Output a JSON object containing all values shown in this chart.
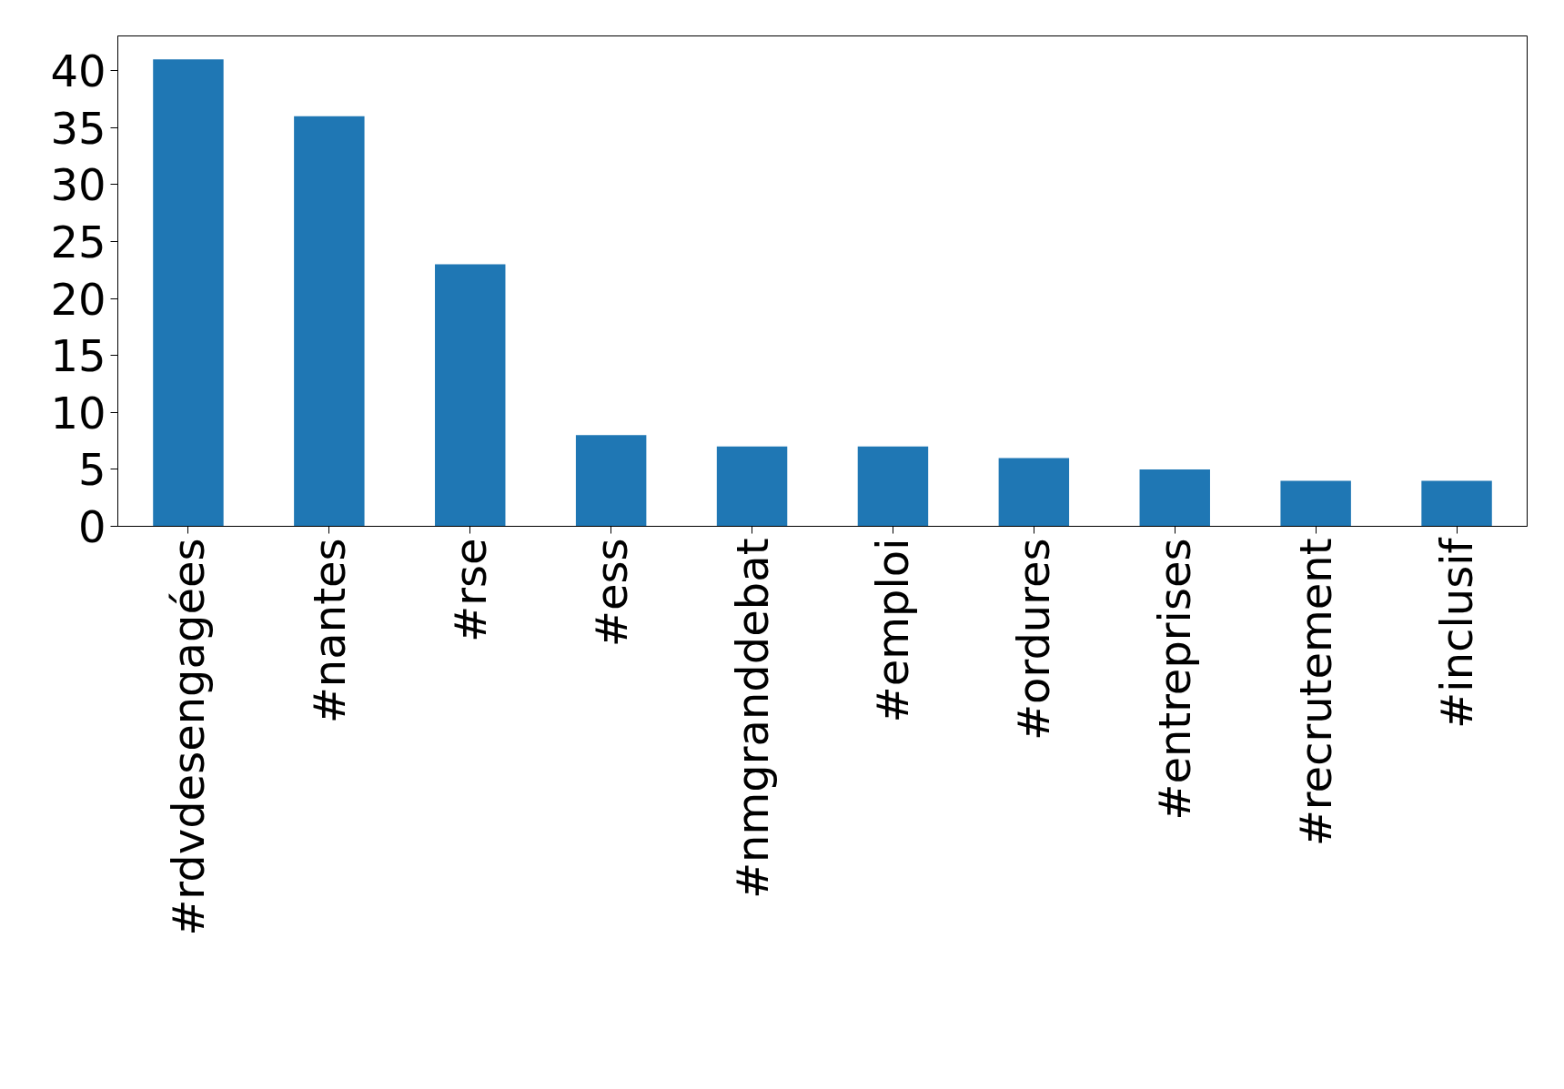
{
  "chart_data": {
    "type": "bar",
    "categories": [
      "#rdvdesengagées",
      "#nantes",
      "#rse",
      "#ess",
      "#nmgranddebat",
      "#emploi",
      "#ordures",
      "#entreprises",
      "#recrutement",
      "#inclusif"
    ],
    "values": [
      41,
      36,
      23,
      8,
      7,
      7,
      6,
      5,
      4,
      4
    ],
    "color": "#1f77b4",
    "ylim": [
      0,
      43.05
    ],
    "yticks": [
      0,
      5,
      10,
      15,
      20,
      25,
      30,
      35,
      40
    ],
    "grid": false
  }
}
